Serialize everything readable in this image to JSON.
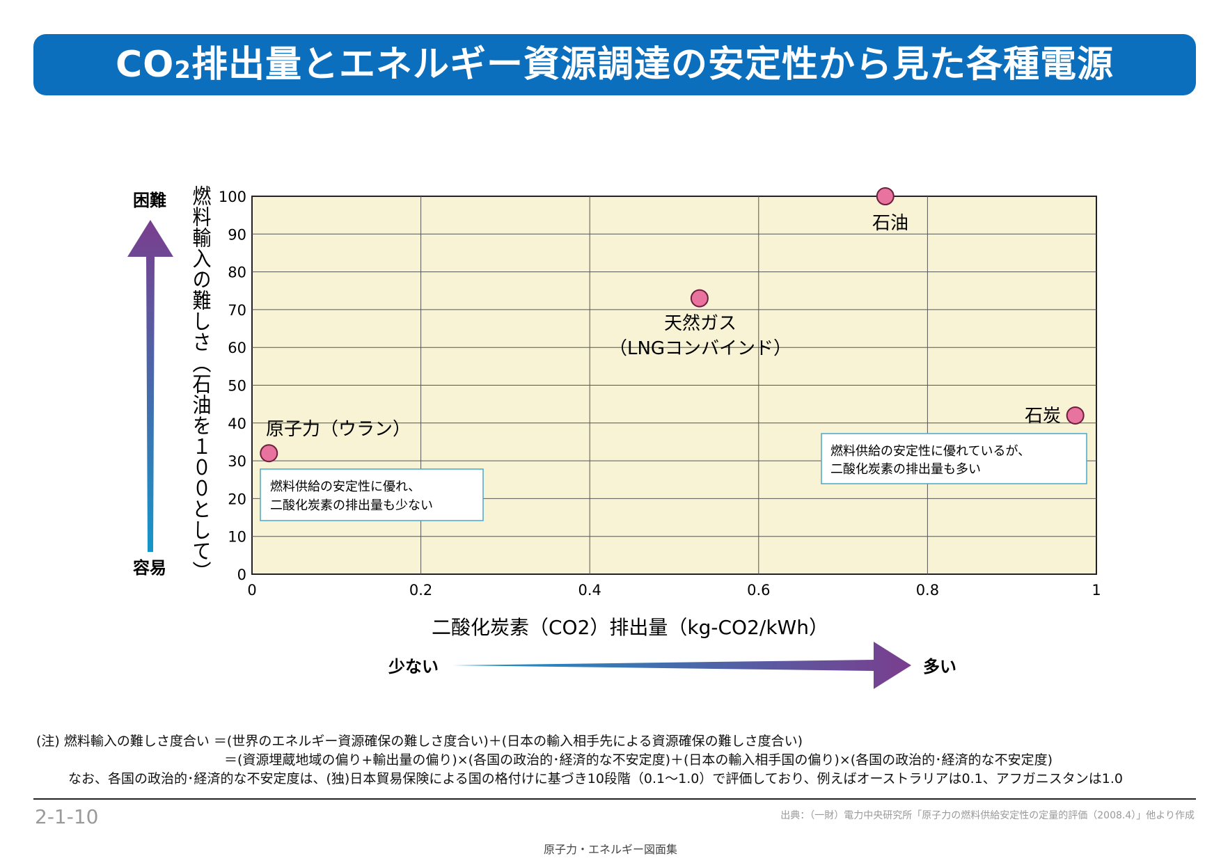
{
  "header": {
    "title_pre": "CO",
    "title_sub": "2",
    "title_post": "排出量とエネルギー資源調達の安定性から見た各種電源"
  },
  "chart_data": {
    "type": "scatter",
    "xlabel": "二酸化炭素（CO2）排出量（kg-CO2/kWh）",
    "ylabel": "燃料輸入の難しさ（石油を１００として）",
    "xlim": [
      0,
      1
    ],
    "ylim": [
      0,
      100
    ],
    "x_ticks": [
      "0",
      "0.2",
      "0.4",
      "0.6",
      "0.8",
      "1"
    ],
    "y_ticks": [
      "0",
      "10",
      "20",
      "30",
      "40",
      "50",
      "60",
      "70",
      "80",
      "90",
      "100"
    ],
    "grid": true,
    "points": [
      {
        "name": "原子力（ウラン）",
        "x": 0.02,
        "y": 32
      },
      {
        "name": "天然ガス（LNGコンバインド）",
        "x": 0.53,
        "y": 73
      },
      {
        "name": "石油",
        "x": 0.75,
        "y": 100
      },
      {
        "name": "石炭",
        "x": 0.975,
        "y": 42
      }
    ],
    "point_labels": {
      "nuclear": "原子力（ウラン）",
      "gas_line1": "天然ガス",
      "gas_line2": "（LNGコンバインド）",
      "oil": "石油",
      "coal": "石炭"
    },
    "annotations": {
      "nuclear_line1": "燃料供給の安定性に優れ、",
      "nuclear_line2": "二酸化炭素の排出量も少ない",
      "coal_line1": "燃料供給の安定性に優れているが、",
      "coal_line2": "二酸化炭素の排出量も多い"
    },
    "axis_arrows": {
      "y_top": "困難",
      "y_bottom": "容易",
      "x_left": "少ない",
      "x_right": "多い"
    }
  },
  "notes": {
    "line1": "(注) 燃料輸入の難しさ度合い ＝(世界のエネルギー資源確保の難しさ度合い)＋(日本の輸入相手先による資源確保の難しさ度合い)",
    "line2": "＝(資源埋蔵地域の偏り+輸出量の偏り)×(各国の政治的･経済的な不安定度)＋(日本の輸入相手国の偏り)×(各国の政治的･経済的な不安定度)",
    "line3": "なお、各国の政治的･経済的な不安定度は、(独)日本貿易保険による国の格付けに基づき10段階（0.1〜1.0）で評価しており、例えばオーストラリアは0.1、アフガニスタンは1.0"
  },
  "footer": {
    "page_number": "2-1-10",
    "source": "出典：（一財）電力中央研究所「原子力の燃料供給安定性の定量的評価（2008.4）」他より作成",
    "publication": "原子力・エネルギー図面集"
  },
  "colors": {
    "title_bg": "#0b6fbd",
    "plot_bg": "#f7f3d4",
    "marker": "#e8739f",
    "arrow_start": "#1596c9",
    "arrow_end": "#7a3e8e",
    "box_border": "#49a7cc"
  }
}
